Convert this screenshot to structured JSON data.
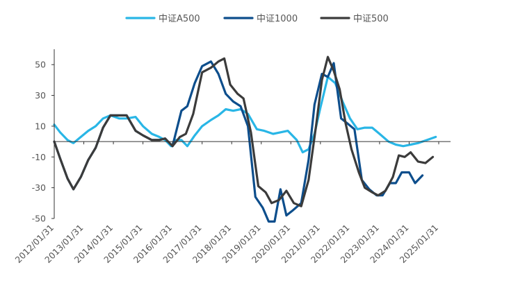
{
  "chart_data": {
    "type": "line",
    "title": "",
    "xlabel": "",
    "ylabel": "",
    "ylim": [
      -50,
      60
    ],
    "yticks": [
      50,
      30,
      10,
      -10,
      -30,
      -50
    ],
    "ytick_labels": [
      "50",
      "30",
      "10",
      "-10",
      "-30",
      "-50"
    ],
    "x_tick_labels": [
      "2012/01/31",
      "2013/01/31",
      "2014/01/31",
      "2015/01/31",
      "2016/01/31",
      "2017/01/31",
      "2018/01/31",
      "2019/01/31",
      "2020/01/31",
      "2021/01/31",
      "2022/01/31",
      "2023/01/31",
      "2024/01/31",
      "2025/01/31"
    ],
    "x_range": [
      2012.0,
      2025.4
    ],
    "legend_position": "top-center",
    "series": [
      {
        "name": "中证A500",
        "color": "#29B6E6",
        "points": [
          [
            2012.0,
            11
          ],
          [
            2012.2,
            6
          ],
          [
            2012.45,
            1
          ],
          [
            2012.65,
            -1
          ],
          [
            2012.9,
            3
          ],
          [
            2013.15,
            7
          ],
          [
            2013.4,
            10
          ],
          [
            2013.65,
            15
          ],
          [
            2013.9,
            17
          ],
          [
            2014.2,
            15
          ],
          [
            2014.45,
            15
          ],
          [
            2014.75,
            16
          ],
          [
            2015.0,
            10
          ],
          [
            2015.3,
            5
          ],
          [
            2015.55,
            3
          ],
          [
            2015.75,
            1
          ],
          [
            2015.95,
            -3
          ],
          [
            2016.1,
            1
          ],
          [
            2016.3,
            1
          ],
          [
            2016.5,
            -3
          ],
          [
            2016.75,
            4
          ],
          [
            2017.0,
            10
          ],
          [
            2017.3,
            14
          ],
          [
            2017.55,
            17
          ],
          [
            2017.8,
            21
          ],
          [
            2018.05,
            20
          ],
          [
            2018.3,
            21
          ],
          [
            2018.55,
            18
          ],
          [
            2018.85,
            8
          ],
          [
            2019.1,
            7
          ],
          [
            2019.4,
            5
          ],
          [
            2019.65,
            6
          ],
          [
            2019.9,
            7
          ],
          [
            2020.2,
            1
          ],
          [
            2020.4,
            -7
          ],
          [
            2020.6,
            -5
          ],
          [
            2020.8,
            5
          ],
          [
            2021.0,
            22
          ],
          [
            2021.25,
            42
          ],
          [
            2021.5,
            38
          ],
          [
            2021.75,
            26
          ],
          [
            2022.0,
            15
          ],
          [
            2022.25,
            8
          ],
          [
            2022.5,
            9
          ],
          [
            2022.75,
            9
          ],
          [
            2023.0,
            5
          ],
          [
            2023.3,
            0
          ],
          [
            2023.55,
            -2
          ],
          [
            2023.8,
            -3
          ],
          [
            2024.05,
            -2
          ],
          [
            2024.3,
            -1
          ],
          [
            2024.6,
            1
          ],
          [
            2024.9,
            3
          ]
        ]
      },
      {
        "name": "中证1000",
        "color": "#0D4E8C",
        "points": [
          [
            2012.0,
            0
          ],
          [
            2012.2,
            -11
          ],
          [
            2012.45,
            -24
          ],
          [
            2012.65,
            -31
          ],
          [
            2012.9,
            -23
          ],
          [
            2013.15,
            -12
          ],
          [
            2013.4,
            -4
          ],
          [
            2013.65,
            9
          ],
          [
            2013.9,
            17
          ],
          [
            2014.2,
            17
          ],
          [
            2014.45,
            17
          ],
          [
            2014.75,
            7
          ],
          [
            2015.0,
            4
          ],
          [
            2015.3,
            1
          ],
          [
            2015.55,
            1
          ],
          [
            2015.75,
            2
          ],
          [
            2016.0,
            -3
          ],
          [
            2016.3,
            20
          ],
          [
            2016.5,
            23
          ],
          [
            2016.75,
            38
          ],
          [
            2017.0,
            49
          ],
          [
            2017.3,
            52
          ],
          [
            2017.55,
            44
          ],
          [
            2017.8,
            31
          ],
          [
            2018.05,
            26
          ],
          [
            2018.3,
            23
          ],
          [
            2018.55,
            10
          ],
          [
            2018.8,
            -36
          ],
          [
            2019.05,
            -43
          ],
          [
            2019.25,
            -52
          ],
          [
            2019.45,
            -52
          ],
          [
            2019.65,
            -31
          ],
          [
            2019.85,
            -48
          ],
          [
            2020.05,
            -45
          ],
          [
            2020.35,
            -40
          ],
          [
            2020.6,
            -12
          ],
          [
            2020.8,
            24
          ],
          [
            2021.05,
            44
          ],
          [
            2021.25,
            42
          ],
          [
            2021.45,
            51
          ],
          [
            2021.7,
            15
          ],
          [
            2021.9,
            12
          ],
          [
            2022.15,
            8
          ],
          [
            2022.4,
            -25
          ],
          [
            2022.65,
            -31
          ],
          [
            2022.9,
            -35
          ],
          [
            2023.1,
            -35
          ],
          [
            2023.35,
            -27
          ],
          [
            2023.55,
            -27
          ],
          [
            2023.75,
            -20
          ],
          [
            2024.0,
            -20
          ],
          [
            2024.2,
            -27
          ],
          [
            2024.45,
            -22
          ]
        ]
      },
      {
        "name": "中证500",
        "color": "#3B3B3B",
        "points": [
          [
            2012.0,
            0
          ],
          [
            2012.2,
            -11
          ],
          [
            2012.45,
            -24
          ],
          [
            2012.65,
            -31
          ],
          [
            2012.9,
            -23
          ],
          [
            2013.15,
            -12
          ],
          [
            2013.4,
            -4
          ],
          [
            2013.65,
            9
          ],
          [
            2013.9,
            17
          ],
          [
            2014.2,
            17
          ],
          [
            2014.45,
            17
          ],
          [
            2014.75,
            7
          ],
          [
            2015.0,
            4
          ],
          [
            2015.3,
            1
          ],
          [
            2015.55,
            1
          ],
          [
            2015.75,
            2
          ],
          [
            2016.0,
            -3
          ],
          [
            2016.25,
            3
          ],
          [
            2016.45,
            5
          ],
          [
            2016.7,
            18
          ],
          [
            2017.0,
            45
          ],
          [
            2017.3,
            48
          ],
          [
            2017.55,
            52
          ],
          [
            2017.75,
            54
          ],
          [
            2017.95,
            37
          ],
          [
            2018.2,
            31
          ],
          [
            2018.4,
            28
          ],
          [
            2018.65,
            6
          ],
          [
            2018.9,
            -29
          ],
          [
            2019.15,
            -33
          ],
          [
            2019.35,
            -40
          ],
          [
            2019.6,
            -38
          ],
          [
            2019.85,
            -32
          ],
          [
            2020.1,
            -40
          ],
          [
            2020.35,
            -42
          ],
          [
            2020.6,
            -25
          ],
          [
            2020.85,
            10
          ],
          [
            2021.05,
            40
          ],
          [
            2021.25,
            55
          ],
          [
            2021.45,
            46
          ],
          [
            2021.65,
            34
          ],
          [
            2021.85,
            12
          ],
          [
            2022.05,
            -5
          ],
          [
            2022.3,
            -20
          ],
          [
            2022.5,
            -30
          ],
          [
            2022.75,
            -33
          ],
          [
            2022.95,
            -35
          ],
          [
            2023.2,
            -32
          ],
          [
            2023.45,
            -23
          ],
          [
            2023.65,
            -9
          ],
          [
            2023.85,
            -10
          ],
          [
            2024.05,
            -7
          ],
          [
            2024.3,
            -13
          ],
          [
            2024.55,
            -14
          ],
          [
            2024.8,
            -10
          ]
        ]
      }
    ]
  }
}
